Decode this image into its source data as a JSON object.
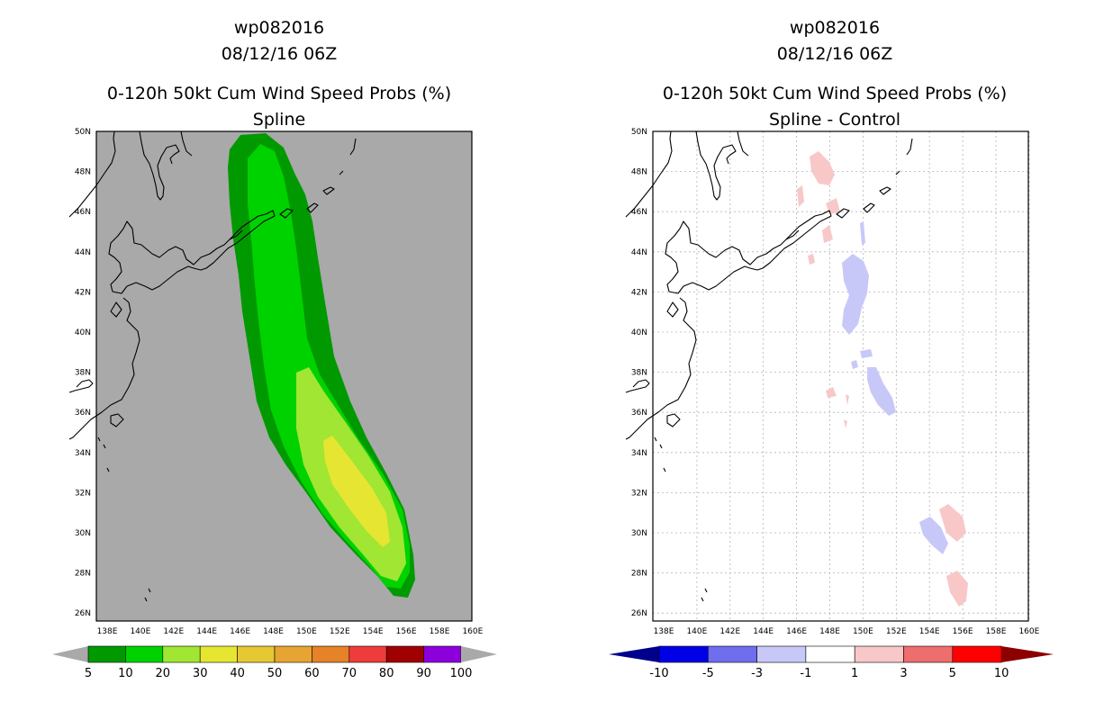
{
  "left": {
    "title_line1": "wp082016",
    "title_line2": "08/12/16 06Z",
    "title_line3": "0-120h 50kt Cum Wind Speed Probs (%)",
    "title_line4": "Spline",
    "colorbar": {
      "colors": [
        "#009a00",
        "#00d200",
        "#a0e632",
        "#e6e632",
        "#e6c832",
        "#e6a532",
        "#e68228",
        "#ee3c3c",
        "#a00000",
        "#8c00dc"
      ],
      "labels": [
        "5",
        "10",
        "20",
        "30",
        "40",
        "50",
        "60",
        "70",
        "80",
        "90",
        "100"
      ]
    }
  },
  "right": {
    "title_line1": "wp082016",
    "title_line2": "08/12/16 06Z",
    "title_line3": "0-120h 50kt Cum Wind Speed Probs (%)",
    "title_line4": "Spline - Control",
    "colorbar": {
      "colors": [
        "#0000e6",
        "#6e6eee",
        "#c8c8f8",
        "#ffffff",
        "#f8c8c8",
        "#ee6e6e",
        "#ff0000"
      ],
      "end_left": "#00008c",
      "end_right": "#8c0000",
      "labels": [
        "-10",
        "-5",
        "-3",
        "-1",
        "1",
        "3",
        "5",
        "10"
      ]
    }
  },
  "axes": {
    "lon_labels": [
      "138E",
      "140E",
      "142E",
      "144E",
      "146E",
      "148E",
      "150E",
      "152E",
      "154E",
      "156E",
      "158E",
      "160E"
    ],
    "lat_labels": [
      "50N",
      "48N",
      "46N",
      "44N",
      "42N",
      "40N",
      "38N",
      "36N",
      "34N",
      "32N",
      "30N",
      "28N",
      "26N"
    ]
  }
}
